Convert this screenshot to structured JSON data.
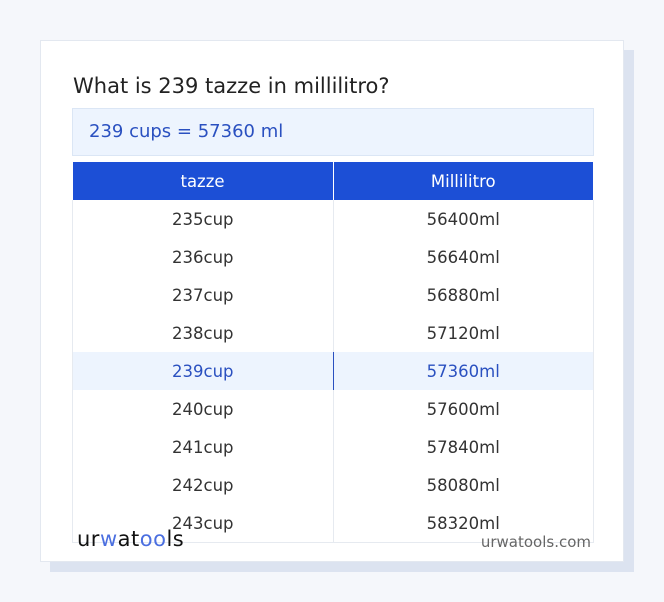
{
  "title": "What is 239 tazze in millilitro?",
  "result": "239 cups = 57360 ml",
  "table": {
    "headers": [
      "tazze",
      "Millilitro"
    ],
    "rows": [
      [
        "235cup",
        "56400ml"
      ],
      [
        "236cup",
        "56640ml"
      ],
      [
        "237cup",
        "56880ml"
      ],
      [
        "238cup",
        "57120ml"
      ],
      [
        "239cup",
        "57360ml"
      ],
      [
        "240cup",
        "57600ml"
      ],
      [
        "241cup",
        "57840ml"
      ],
      [
        "242cup",
        "58080ml"
      ],
      [
        "243cup",
        "58320ml"
      ]
    ],
    "highlighted_row": 4
  },
  "footer": {
    "logo": "urwatools",
    "site": "urwatools.com"
  },
  "colors": {
    "accent": "#1c4fd6",
    "highlight": "#edf4fe"
  }
}
